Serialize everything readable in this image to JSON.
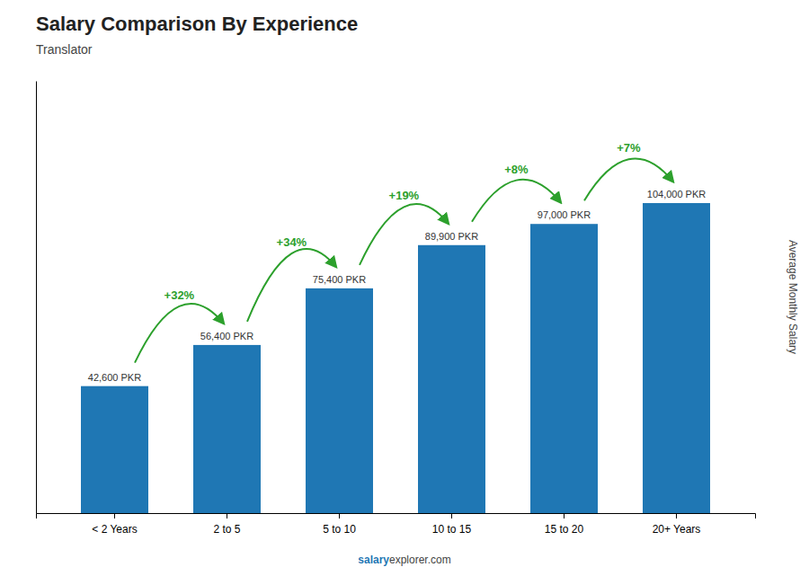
{
  "chart_data": {
    "type": "bar",
    "title": "Salary Comparison By Experience",
    "subtitle": "Translator",
    "ylabel": "Average Monthly Salary",
    "categories": [
      "< 2 Years",
      "2 to 5",
      "5 to 10",
      "10 to 15",
      "15 to 20",
      "20+ Years"
    ],
    "values": [
      42600,
      56400,
      75400,
      89900,
      97000,
      104000
    ],
    "value_labels": [
      "42,600 PKR",
      "56,400 PKR",
      "75,400 PKR",
      "89,900 PKR",
      "97,000 PKR",
      "104,000 PKR"
    ],
    "data_labels": true,
    "annotations": [
      "+32%",
      "+34%",
      "+19%",
      "+8%",
      "+7%"
    ],
    "footer": [
      "salary",
      "explorer.com"
    ],
    "ylim": [
      0,
      145000
    ],
    "tick_labels": "x",
    "grid": false
  }
}
